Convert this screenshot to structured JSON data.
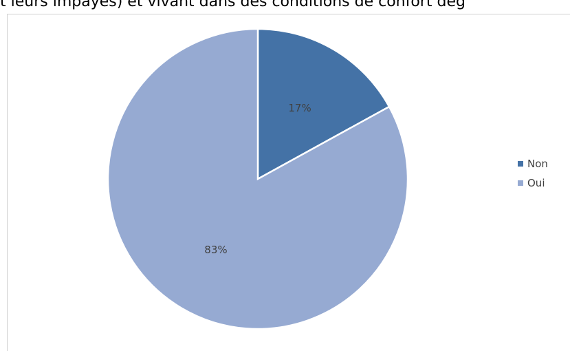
{
  "chart_data": {
    "type": "pie",
    "title": "t leurs impayés) et vivant dans des conditions de confort dég",
    "slices": [
      {
        "label": "Non",
        "value": 17,
        "display": "17%",
        "color": "#4472a6"
      },
      {
        "label": "Oui",
        "value": 83,
        "display": "83%",
        "color": "#96aad2"
      }
    ],
    "legend_position": "right"
  }
}
